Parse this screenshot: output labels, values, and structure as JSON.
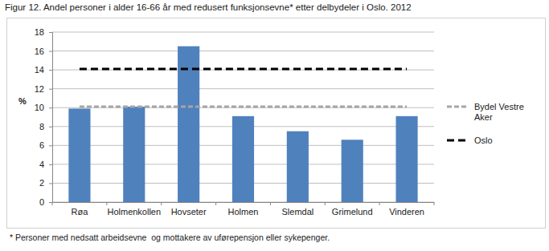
{
  "chart_data": {
    "type": "bar",
    "title": "Figur 12. Andel personer i alder 16-66 år med redusert funksjonsevne* etter delbydeler i Oslo. 2012",
    "footnote": "* Personer med nedsatt arbeidsevne  og mottakere av uførepensjon eller sykepenger.",
    "y_label": "%",
    "categories": [
      "Røa",
      "Holmenkollen",
      "Hovseter",
      "Holmen",
      "Slemdal",
      "Grimelund",
      "Vinderen"
    ],
    "series": [
      {
        "type": "bar",
        "color": "#4f81bd",
        "values": [
          9.9,
          10.1,
          16.5,
          9.1,
          7.5,
          6.6,
          9.1
        ]
      },
      {
        "name": "Bydel Vestre Aker",
        "type": "line",
        "line_style": "dashed",
        "color": "#a6a6a6",
        "values": [
          10.1,
          10.1,
          10.1,
          10.1,
          10.1,
          10.1,
          10.1
        ]
      },
      {
        "name": "Oslo",
        "type": "line",
        "line_style": "dashed",
        "color": "#000000",
        "values": [
          14.1,
          14.1,
          14.1,
          14.1,
          14.1,
          14.1,
          14.1
        ]
      }
    ],
    "ylim": [
      0,
      18
    ],
    "yticks": [
      0,
      2,
      4,
      6,
      8,
      10,
      12,
      14,
      16,
      18
    ],
    "grid": true,
    "legend": "right"
  }
}
